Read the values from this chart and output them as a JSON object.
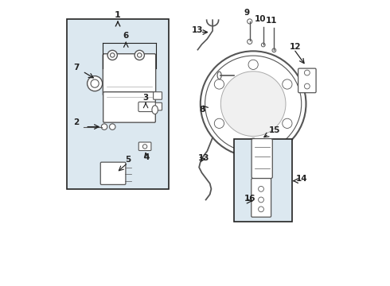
{
  "bg_color": "#ffffff",
  "light_blue_bg": "#dce8f0",
  "line_color": "#555555",
  "dark_line": "#222222"
}
